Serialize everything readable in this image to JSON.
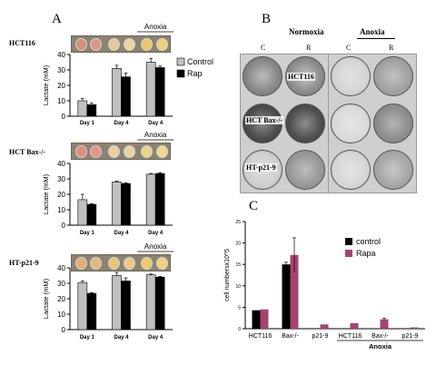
{
  "panel_letters": {
    "a": "A",
    "b": "B",
    "c": "C"
  },
  "panel_a": {
    "anoxia_label": "Anoxia",
    "plots": [
      {
        "row_label": "HCT116",
        "legend": [
          "Control",
          "Rap"
        ]
      },
      {
        "row_label": "HCT Bax-/-"
      },
      {
        "row_label": "HT-p21-9"
      }
    ]
  },
  "panel_b": {
    "col_normoxia": "Normoxia",
    "col_anoxia": "Anoxia",
    "sub_c": "C",
    "sub_r": "R",
    "rows": [
      "HCT116",
      "HCT Bax-/-",
      "HT-p21-9"
    ]
  },
  "colors": {
    "control_gray": "#c0c0c0",
    "rap_black": "#000000",
    "c_control": "#000000",
    "c_rapa": "#a64371"
  },
  "chart_data": [
    {
      "type": "bar",
      "title": "HCT116",
      "ylabel": "Lactate (mM)",
      "categories": [
        "Day 1",
        "Day 4",
        "Day 4"
      ],
      "ylim": [
        0,
        40
      ],
      "yticks": [
        0,
        10,
        20,
        30,
        40
      ],
      "series": [
        {
          "name": "Control",
          "values": [
            10,
            31,
            35
          ],
          "errors": [
            1.5,
            2,
            2.5
          ]
        },
        {
          "name": "Rap",
          "values": [
            7.5,
            25.5,
            31.5
          ],
          "errors": [
            1,
            2.5,
            1
          ]
        }
      ],
      "annotation": "Anoxia",
      "legend": "right"
    },
    {
      "type": "bar",
      "title": "HCT Bax-/-",
      "ylabel": "Lactate (mM)",
      "categories": [
        "Day 1",
        "Day 4",
        "Day 4"
      ],
      "ylim": [
        0,
        40
      ],
      "yticks": [
        0,
        10,
        20,
        30,
        40
      ],
      "series": [
        {
          "values": [
            16.5,
            28,
            33
          ],
          "errors": [
            3.5,
            0.5,
            0.5
          ]
        },
        {
          "values": [
            13.5,
            27,
            33.5
          ],
          "errors": [
            0.5,
            0.5,
            0.5
          ]
        }
      ],
      "annotation": "Anoxia"
    },
    {
      "type": "bar",
      "title": "HT-p21-9",
      "ylabel": "Lactate (mM)",
      "categories": [
        "Day 1",
        "Day 4",
        "Day 4"
      ],
      "ylim": [
        0,
        40
      ],
      "yticks": [
        0,
        10,
        20,
        30,
        40
      ],
      "series": [
        {
          "values": [
            30.5,
            35,
            35.5
          ],
          "errors": [
            1,
            2,
            0.5
          ]
        },
        {
          "values": [
            23.5,
            31.5,
            34
          ],
          "errors": [
            0.5,
            2,
            0.5
          ]
        }
      ],
      "annotation": "Anoxia"
    },
    {
      "type": "bar",
      "title": "C",
      "ylabel": "cell numbersx10^5",
      "categories": [
        "HCT116",
        "Bax-/-",
        "p21-9",
        "HCT116",
        "Bax-/-",
        "p21-9"
      ],
      "group_label": "Anoxia",
      "ylim": [
        0,
        25
      ],
      "yticks": [
        0,
        5,
        10,
        15,
        20,
        25
      ],
      "series": [
        {
          "name": "control",
          "values": [
            4.3,
            15,
            0,
            0,
            0,
            0
          ],
          "errors": [
            0,
            0.5,
            0,
            0,
            0,
            0
          ]
        },
        {
          "name": "Rapa",
          "values": [
            4.5,
            17.2,
            1,
            1.3,
            2.2,
            0.3
          ],
          "errors": [
            0,
            4,
            0,
            0,
            0.2,
            0
          ]
        }
      ],
      "legend": "upper-right"
    }
  ]
}
